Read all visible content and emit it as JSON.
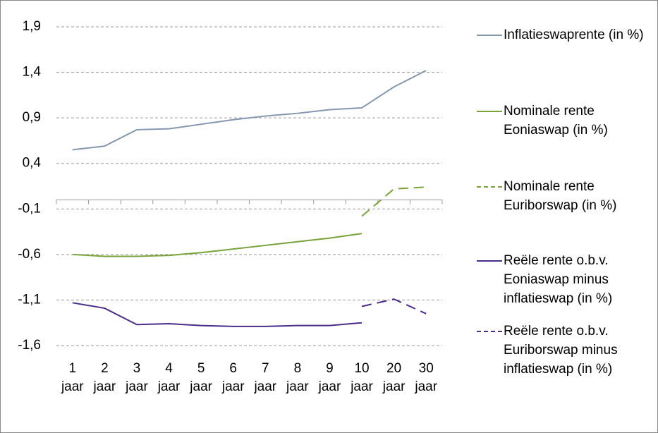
{
  "chart_data": {
    "type": "line",
    "categories": [
      "1 jaar",
      "2 jaar",
      "3 jaar",
      "4 jaar",
      "5 jaar",
      "6 jaar",
      "7 jaar",
      "8 jaar",
      "9 jaar",
      "10 jaar",
      "20 jaar",
      "30 jaar"
    ],
    "series": [
      {
        "name": "Inflatieswaprente (in %)",
        "color": "#8497b0",
        "dash": false,
        "values": [
          0.55,
          0.59,
          0.77,
          0.78,
          0.83,
          0.88,
          0.92,
          0.95,
          0.99,
          1.01,
          1.24,
          1.42
        ]
      },
      {
        "name": "Nominale rente Eoniaswap (in %)",
        "color": "#77a33a",
        "dash": false,
        "values": [
          -0.6,
          -0.62,
          -0.62,
          -0.61,
          -0.58,
          -0.54,
          -0.5,
          -0.46,
          -0.42,
          -0.37,
          null,
          null
        ]
      },
      {
        "name": "Nominale rente Euriborswap (in %)",
        "color": "#77a33a",
        "dash": true,
        "values": [
          null,
          null,
          null,
          null,
          null,
          null,
          null,
          null,
          null,
          -0.18,
          0.12,
          0.14
        ]
      },
      {
        "name": "Reële rente o.b.v. Eoniaswap minus inflatieswap (in %)",
        "color": "#4b2c8c",
        "dash": false,
        "values": [
          -1.13,
          -1.19,
          -1.37,
          -1.36,
          -1.38,
          -1.39,
          -1.39,
          -1.38,
          -1.38,
          -1.35,
          null,
          null
        ]
      },
      {
        "name": "Reële rente o.b.v. Euriborswap minus inflatieswap (in %)",
        "color": "#4b2c8c",
        "dash": true,
        "values": [
          null,
          null,
          null,
          null,
          null,
          null,
          null,
          null,
          null,
          -1.17,
          -1.09,
          -1.25
        ]
      }
    ],
    "ylim": [
      -1.6,
      1.9
    ],
    "yticks": [
      {
        "value": -1.6,
        "label": "-1,6"
      },
      {
        "value": -1.1,
        "label": "-1,1"
      },
      {
        "value": -0.6,
        "label": "-0,6"
      },
      {
        "value": -0.1,
        "label": "-0,1"
      },
      {
        "value": 0.4,
        "label": "0,4"
      },
      {
        "value": 0.9,
        "label": "0,9"
      },
      {
        "value": 1.4,
        "label": "1,4"
      },
      {
        "value": 1.9,
        "label": "1,9"
      }
    ],
    "grid": true,
    "legend": "right"
  }
}
